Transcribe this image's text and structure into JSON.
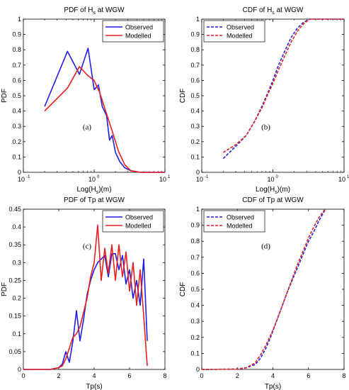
{
  "colors": {
    "observed": "#1f1fe6",
    "modelled": "#e61f1f"
  },
  "chart_data": [
    {
      "type": "line",
      "title_main": "PDF of H",
      "title_sub": "s",
      "title_tail": " at WGW",
      "xlabel_main": "Log(H",
      "xlabel_sub": "s",
      "xlabel_tail": ")(m)",
      "ylabel": "PDF",
      "panel_label": "(a)",
      "xscale": "log",
      "xlim": [
        0.1,
        10
      ],
      "ylim": [
        0,
        1
      ],
      "yticks": [
        "0",
        "0.1",
        "0.2",
        "0.3",
        "0.4",
        "0.5",
        "0.6",
        "0.7",
        "0.8",
        "0.9",
        "1"
      ],
      "xticks_log": [
        -1,
        0,
        1
      ],
      "legend_position": "top-right",
      "line_style": "solid",
      "series": [
        {
          "name": "Observed",
          "color_key": "observed",
          "x": [
            0.2,
            0.42,
            0.62,
            0.82,
            1.0,
            1.15,
            1.3,
            1.5,
            1.65,
            1.8,
            2.0,
            2.3,
            2.7,
            3.3,
            4.5,
            6.5,
            10
          ],
          "y": [
            0.43,
            0.79,
            0.64,
            0.81,
            0.54,
            0.57,
            0.43,
            0.37,
            0.21,
            0.24,
            0.13,
            0.07,
            0.03,
            0.01,
            0.0,
            0.0,
            0.0
          ]
        },
        {
          "name": "Modelled",
          "color_key": "modelled",
          "x": [
            0.2,
            0.42,
            0.62,
            0.82,
            1.0,
            1.2,
            1.5,
            1.8,
            2.2,
            2.7,
            3.3,
            4.5,
            6.5,
            10
          ],
          "y": [
            0.4,
            0.55,
            0.69,
            0.63,
            0.6,
            0.52,
            0.38,
            0.27,
            0.14,
            0.05,
            0.01,
            0.0,
            0.0,
            0.0
          ]
        }
      ]
    },
    {
      "type": "line",
      "title_main": "CDF of H",
      "title_sub": "s",
      "title_tail": " at WGW",
      "xlabel_main": "Log(H",
      "xlabel_sub": "s",
      "xlabel_tail": ")(m)",
      "ylabel": "CDF",
      "panel_label": "(b)",
      "xscale": "log",
      "xlim": [
        0.1,
        10
      ],
      "ylim": [
        0,
        1
      ],
      "yticks": [
        "0",
        "0.1",
        "0.2",
        "0.3",
        "0.4",
        "0.5",
        "0.6",
        "0.7",
        "0.8",
        "0.9",
        "1"
      ],
      "xticks_log": [
        -1,
        0,
        1
      ],
      "legend_position": "top-left",
      "line_style": "dashed",
      "series": [
        {
          "name": "Observed",
          "color_key": "observed",
          "x": [
            0.2,
            0.3,
            0.42,
            0.55,
            0.7,
            0.85,
            1.0,
            1.2,
            1.5,
            1.8,
            2.2,
            2.7,
            3.3,
            4.5,
            6.5,
            10
          ],
          "y": [
            0.09,
            0.17,
            0.24,
            0.33,
            0.43,
            0.52,
            0.6,
            0.7,
            0.8,
            0.88,
            0.94,
            0.98,
            1.0,
            1.0,
            1.0,
            1.0
          ]
        },
        {
          "name": "Modelled",
          "color_key": "modelled",
          "x": [
            0.2,
            0.3,
            0.42,
            0.55,
            0.7,
            0.85,
            1.0,
            1.2,
            1.5,
            1.8,
            2.2,
            2.7,
            3.3,
            4.5,
            6.5,
            10
          ],
          "y": [
            0.13,
            0.18,
            0.24,
            0.33,
            0.42,
            0.51,
            0.58,
            0.67,
            0.77,
            0.85,
            0.92,
            0.97,
            1.0,
            1.0,
            1.0,
            1.0
          ]
        }
      ]
    },
    {
      "type": "line",
      "title_main": "PDF of Tp at WGW",
      "xlabel_main": "Tp(s)",
      "ylabel": "PDF",
      "panel_label": "(c)",
      "xscale": "linear",
      "xlim": [
        0,
        8
      ],
      "ylim": [
        0,
        0.45
      ],
      "yticks": [
        "0",
        "0.05",
        "0.1",
        "0.15",
        "0.2",
        "0.25",
        "0.3",
        "0.35",
        "0.4",
        "0.45"
      ],
      "xticks": [
        "0",
        "2",
        "4",
        "6",
        "8"
      ],
      "legend_position": "top-right",
      "line_style": "solid",
      "series": [
        {
          "name": "Observed",
          "color_key": "observed",
          "x": [
            0,
            1.5,
            2.0,
            2.2,
            2.4,
            2.6,
            2.8,
            3.0,
            3.2,
            3.4,
            3.6,
            3.8,
            4.0,
            4.2,
            4.4,
            4.6,
            4.8,
            5.0,
            5.2,
            5.4,
            5.6,
            5.8,
            6.0,
            6.2,
            6.4,
            6.6,
            6.8,
            7.0
          ],
          "y": [
            0,
            0,
            0.005,
            0.015,
            0.05,
            0.02,
            0.08,
            0.165,
            0.08,
            0.14,
            0.21,
            0.25,
            0.28,
            0.3,
            0.31,
            0.32,
            0.26,
            0.325,
            0.325,
            0.28,
            0.32,
            0.24,
            0.28,
            0.2,
            0.25,
            0.18,
            0.31,
            0.08
          ]
        },
        {
          "name": "Modelled",
          "color_key": "modelled",
          "x": [
            0,
            1.5,
            2.0,
            2.2,
            2.4,
            2.6,
            2.8,
            3.0,
            3.2,
            3.4,
            3.6,
            3.8,
            4.0,
            4.2,
            4.4,
            4.6,
            4.8,
            5.0,
            5.2,
            5.4,
            5.6,
            5.8,
            6.0,
            6.2,
            6.4,
            6.6,
            6.8,
            7.0
          ],
          "y": [
            0,
            0,
            0.005,
            0.01,
            0.03,
            0.06,
            0.09,
            0.1,
            0.12,
            0.16,
            0.2,
            0.26,
            0.3,
            0.405,
            0.25,
            0.34,
            0.27,
            0.35,
            0.25,
            0.35,
            0.26,
            0.33,
            0.22,
            0.3,
            0.18,
            0.28,
            0.15,
            0.01
          ]
        }
      ]
    },
    {
      "type": "line",
      "title_main": "CDF of Tp at WGW",
      "xlabel_main": "Tp(s)",
      "ylabel": "CDF",
      "panel_label": "(d)",
      "xscale": "linear",
      "xlim": [
        0,
        8
      ],
      "ylim": [
        0,
        1
      ],
      "yticks": [
        "0",
        "0.1",
        "0.2",
        "0.3",
        "0.4",
        "0.5",
        "0.6",
        "0.7",
        "0.8",
        "0.9",
        "1"
      ],
      "xticks": [
        "0",
        "2",
        "4",
        "6",
        "8"
      ],
      "legend_position": "top-left",
      "line_style": "dashed",
      "series": [
        {
          "name": "Observed",
          "color_key": "observed",
          "x": [
            0,
            2.0,
            2.5,
            3.0,
            3.3,
            3.6,
            3.9,
            4.2,
            4.5,
            4.8,
            5.1,
            5.4,
            5.7,
            6.0,
            6.3,
            6.6,
            6.9,
            7.0
          ],
          "y": [
            0,
            0.002,
            0.01,
            0.03,
            0.07,
            0.13,
            0.21,
            0.3,
            0.39,
            0.48,
            0.56,
            0.64,
            0.72,
            0.8,
            0.86,
            0.93,
            0.99,
            1.0
          ]
        },
        {
          "name": "Modelled",
          "color_key": "modelled",
          "x": [
            0,
            2.0,
            2.5,
            3.0,
            3.3,
            3.6,
            3.9,
            4.2,
            4.5,
            4.8,
            5.1,
            5.4,
            5.7,
            6.0,
            6.3,
            6.6,
            6.9,
            7.0
          ],
          "y": [
            0,
            0.002,
            0.01,
            0.04,
            0.09,
            0.15,
            0.22,
            0.3,
            0.39,
            0.48,
            0.57,
            0.66,
            0.74,
            0.82,
            0.89,
            0.95,
            0.995,
            1.0
          ]
        }
      ]
    }
  ]
}
